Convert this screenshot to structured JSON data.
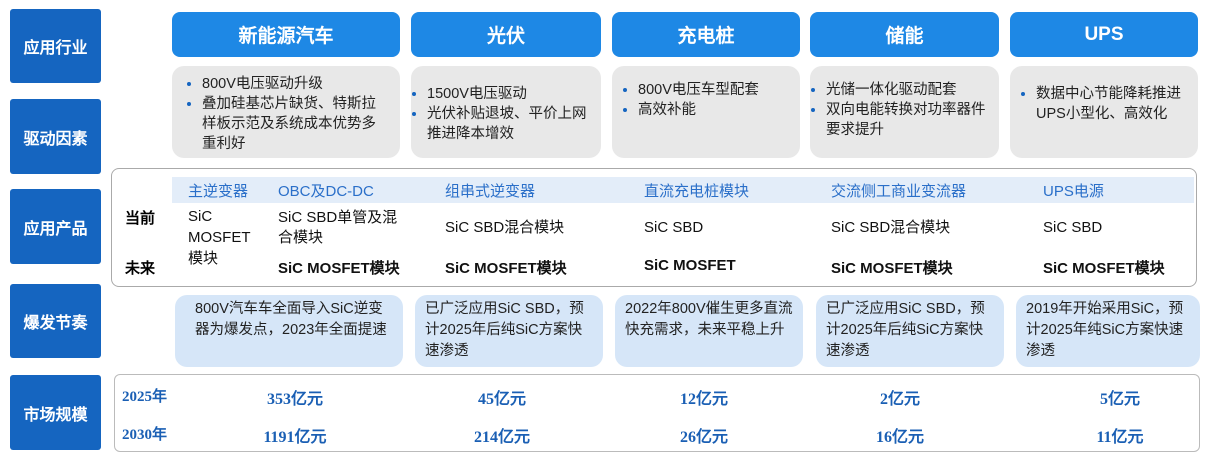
{
  "row_labels": [
    "应用行业",
    "驱动因素",
    "应用产品",
    "爆发节奏",
    "市场规模"
  ],
  "industries": [
    "新能源汽车",
    "光伏",
    "充电桩",
    "储能",
    "UPS"
  ],
  "drivers": [
    [
      "800V电压驱动升级",
      "叠加硅基芯片缺货、特斯拉样板示范及系统成本优势多重利好"
    ],
    [
      "1500V电压驱动",
      "光伏补贴退坡、平价上网推进降本增效"
    ],
    [
      "800V电压车型配套",
      "高效补能"
    ],
    [
      "光储一体化驱动配套",
      "双向电能转换对功率器件要求提升"
    ],
    [
      "数据中心节能降耗推进UPS小型化、高效化"
    ]
  ],
  "products": {
    "current_label": "当前",
    "future_label": "未来",
    "items": [
      {
        "name": "主逆变器",
        "current": "SiC MOSFET模块",
        "future": ""
      },
      {
        "name": "OBC及DC-DC",
        "current": "SiC SBD单管及混合模块",
        "future": "SiC MOSFET模块"
      },
      {
        "name": "组串式逆变器",
        "current": "SiC SBD混合模块",
        "future": "SiC MOSFET模块"
      },
      {
        "name": "直流充电桩模块",
        "current": "SiC SBD",
        "future": "SiC MOSFET"
      },
      {
        "name": "交流侧工商业变流器",
        "current": "SiC SBD混合模块",
        "future": "SiC MOSFET模块"
      },
      {
        "name": "UPS电源",
        "current": "SiC SBD",
        "future": "SiC MOSFET模块"
      }
    ]
  },
  "burst": [
    "800V汽车车全面导入SiC逆变器为爆发点，2023年全面提速",
    "已广泛应用SiC SBD，预计2025年后纯SiC方案快速渗透",
    "2022年800V催生更多直流快充需求，未来平稳上升",
    "已广泛应用SiC SBD，预计2025年后纯SiC方案快速渗透",
    "2019年开始采用SiC，预计2025年纯SiC方案快速渗透"
  ],
  "market": {
    "years": [
      "2025年",
      "2030年"
    ],
    "y2025": [
      "353亿元",
      "45亿元",
      "12亿元",
      "2亿元",
      "5亿元"
    ],
    "y2030": [
      "1191亿元",
      "214亿元",
      "26亿元",
      "16亿元",
      "11亿元"
    ]
  },
  "colors": {
    "label_bg": "#1565c0",
    "industry_bg": "#1e88e5",
    "driver_bg": "#e8e8e8",
    "burst_bg": "#d6e6f8",
    "value": "#1a5fb4"
  }
}
